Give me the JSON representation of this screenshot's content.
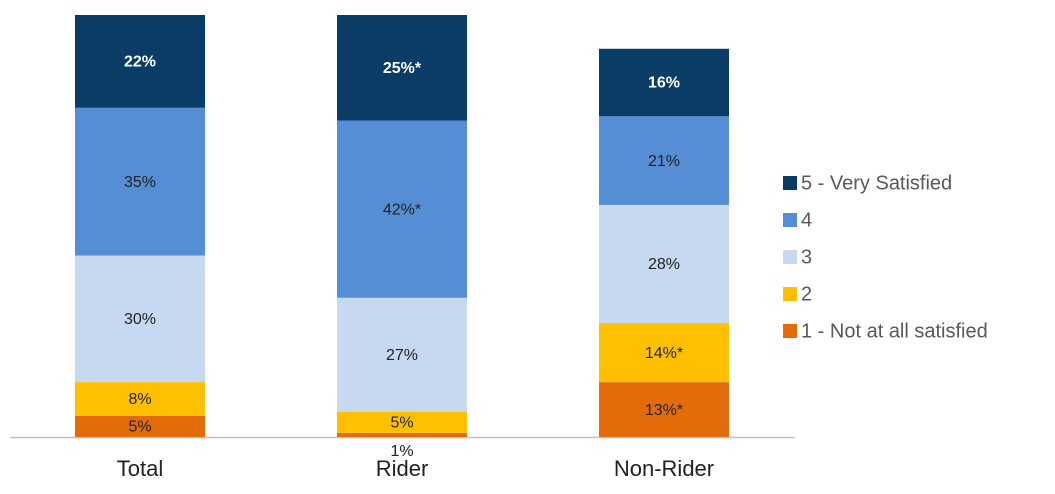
{
  "chart_data": {
    "type": "stacked_bar",
    "categories": [
      "Total",
      "Rider",
      "Non-Rider"
    ],
    "series": [
      {
        "name": "1 - Not at all satisfied",
        "color": "#e36c09",
        "values": [
          5,
          1,
          13
        ],
        "value_labels": [
          "5%",
          "1%",
          "13%*"
        ]
      },
      {
        "name": "2",
        "color": "#ffc000",
        "values": [
          8,
          5,
          14
        ],
        "value_labels": [
          "8%",
          "5%",
          "14%*"
        ]
      },
      {
        "name": "3",
        "color": "#c6d9f1",
        "values": [
          30,
          27,
          28
        ],
        "value_labels": [
          "30%",
          "27%",
          "28%"
        ]
      },
      {
        "name": "4",
        "color": "#558ed5",
        "values": [
          35,
          42,
          21
        ],
        "value_labels": [
          "35%",
          "42%*",
          "21%"
        ]
      },
      {
        "name": "5 - Very Satisfied",
        "color": "#0b3c66",
        "values": [
          22,
          25,
          16
        ],
        "value_labels": [
          "22%",
          "25%*",
          "16%"
        ]
      }
    ],
    "ylim": [
      0,
      100
    ],
    "legend": "right"
  }
}
